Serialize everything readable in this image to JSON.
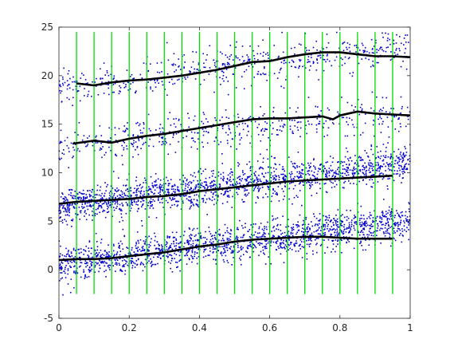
{
  "chart_data": {
    "type": "scatter",
    "title": "",
    "xlabel": "",
    "ylabel": "",
    "xlim": [
      0,
      1
    ],
    "ylim": [
      -5,
      25
    ],
    "xticks": [
      0,
      0.2,
      0.4,
      0.6,
      0.8,
      1
    ],
    "yticks": [
      -5,
      0,
      5,
      10,
      15,
      20,
      25
    ],
    "grid": false,
    "legend": "none",
    "colors": {
      "points": "#0000d0",
      "curves": "#000000",
      "verticals": "#00dd00",
      "axes": "#262626"
    },
    "vertical_lines_x": [
      0.05,
      0.1,
      0.15,
      0.2,
      0.25,
      0.3,
      0.35,
      0.4,
      0.45,
      0.5,
      0.55,
      0.6,
      0.65,
      0.7,
      0.75,
      0.8,
      0.85,
      0.9,
      0.95
    ],
    "vertical_lines_range": [
      -2.5,
      24.5
    ],
    "scatter_bands": [
      {
        "y0": 0.5,
        "y1": 5.0,
        "spread": 0.9,
        "n": 1600,
        "xrange": [
          0,
          1
        ]
      },
      {
        "y0": 6.5,
        "y1": 11.0,
        "spread": 0.9,
        "n": 1600,
        "xrange": [
          0,
          1
        ]
      },
      {
        "y0": 12.7,
        "y1": 16.2,
        "spread": 1.0,
        "n": 500,
        "xrange": [
          0,
          1
        ]
      },
      {
        "y0": 18.8,
        "y1": 23.0,
        "spread": 1.0,
        "n": 550,
        "xrange": [
          0,
          1
        ]
      }
    ],
    "series": [
      {
        "x": [
          0,
          0.05,
          0.1,
          0.15,
          0.2,
          0.25,
          0.3,
          0.35,
          0.4,
          0.45,
          0.5,
          0.55,
          0.6,
          0.65,
          0.7,
          0.75,
          0.8,
          0.85,
          0.9,
          0.95
        ],
        "y": [
          1.0,
          1.1,
          1.1,
          1.2,
          1.4,
          1.6,
          1.8,
          2.1,
          2.4,
          2.6,
          2.9,
          3.1,
          3.2,
          3.3,
          3.4,
          3.4,
          3.3,
          3.2,
          3.2,
          3.2
        ]
      },
      {
        "x": [
          0,
          0.05,
          0.1,
          0.15,
          0.2,
          0.25,
          0.3,
          0.35,
          0.4,
          0.45,
          0.5,
          0.55,
          0.6,
          0.65,
          0.7,
          0.75,
          0.8,
          0.85,
          0.9,
          0.95
        ],
        "y": [
          6.8,
          7.0,
          7.1,
          7.2,
          7.3,
          7.5,
          7.6,
          7.8,
          8.1,
          8.3,
          8.5,
          8.7,
          8.9,
          9.1,
          9.2,
          9.3,
          9.4,
          9.5,
          9.6,
          9.7
        ]
      },
      {
        "x": [
          0.04,
          0.1,
          0.15,
          0.2,
          0.25,
          0.3,
          0.35,
          0.4,
          0.45,
          0.5,
          0.55,
          0.6,
          0.65,
          0.7,
          0.75,
          0.78,
          0.8,
          0.85,
          0.9,
          0.95,
          1.0
        ],
        "y": [
          13.0,
          13.3,
          13.1,
          13.5,
          13.8,
          14.0,
          14.3,
          14.6,
          14.9,
          15.2,
          15.5,
          15.6,
          15.6,
          15.7,
          15.8,
          15.5,
          15.9,
          16.3,
          16.1,
          16.0,
          15.9
        ]
      },
      {
        "x": [
          0.05,
          0.1,
          0.15,
          0.2,
          0.25,
          0.3,
          0.35,
          0.4,
          0.45,
          0.5,
          0.55,
          0.6,
          0.65,
          0.7,
          0.75,
          0.8,
          0.85,
          0.9,
          0.95,
          1.0
        ],
        "y": [
          19.2,
          19.0,
          19.3,
          19.5,
          19.6,
          19.8,
          20.0,
          20.3,
          20.6,
          21.0,
          21.4,
          21.5,
          21.9,
          22.2,
          22.4,
          22.4,
          22.2,
          22.0,
          22.0,
          21.9
        ]
      }
    ]
  }
}
